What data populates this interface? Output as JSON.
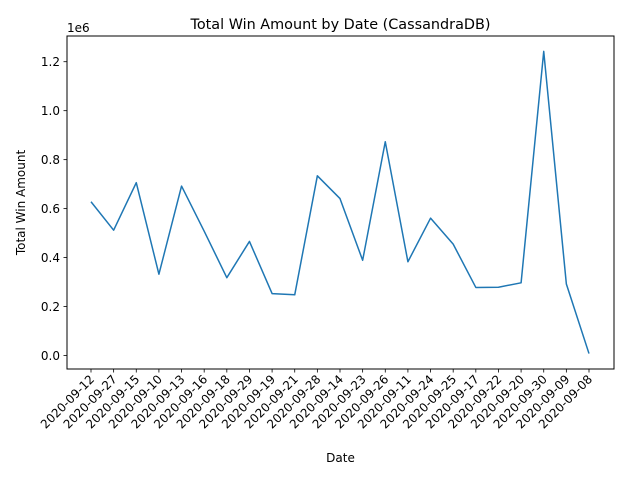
{
  "chart_data": {
    "type": "line",
    "title": "Total Win Amount by Date (CassandraDB)",
    "xlabel": "Date",
    "ylabel": "Total Win Amount",
    "y_offset_label": "1e6",
    "categories": [
      "2020-09-12",
      "2020-09-27",
      "2020-09-15",
      "2020-09-10",
      "2020-09-13",
      "2020-09-16",
      "2020-09-18",
      "2020-09-29",
      "2020-09-19",
      "2020-09-21",
      "2020-09-28",
      "2020-09-14",
      "2020-09-23",
      "2020-09-26",
      "2020-09-11",
      "2020-09-24",
      "2020-09-25",
      "2020-09-17",
      "2020-09-22",
      "2020-09-20",
      "2020-09-30",
      "2020-09-09",
      "2020-09-08"
    ],
    "values": [
      628000,
      512000,
      706000,
      332000,
      692000,
      508000,
      318000,
      466000,
      253000,
      248000,
      734000,
      641000,
      389000,
      873000,
      383000,
      561000,
      455000,
      278000,
      279000,
      297000,
      1242000,
      292000,
      8000
    ],
    "ylim": [
      -55000,
      1305000
    ],
    "yticks": [
      0,
      200000,
      400000,
      600000,
      800000,
      1000000,
      1200000
    ],
    "ytick_labels": [
      "0.0",
      "0.2",
      "0.4",
      "0.6",
      "0.8",
      "1.0",
      "1.2"
    ],
    "line_color": "#1f77b4",
    "grid": false,
    "legend": "none"
  }
}
